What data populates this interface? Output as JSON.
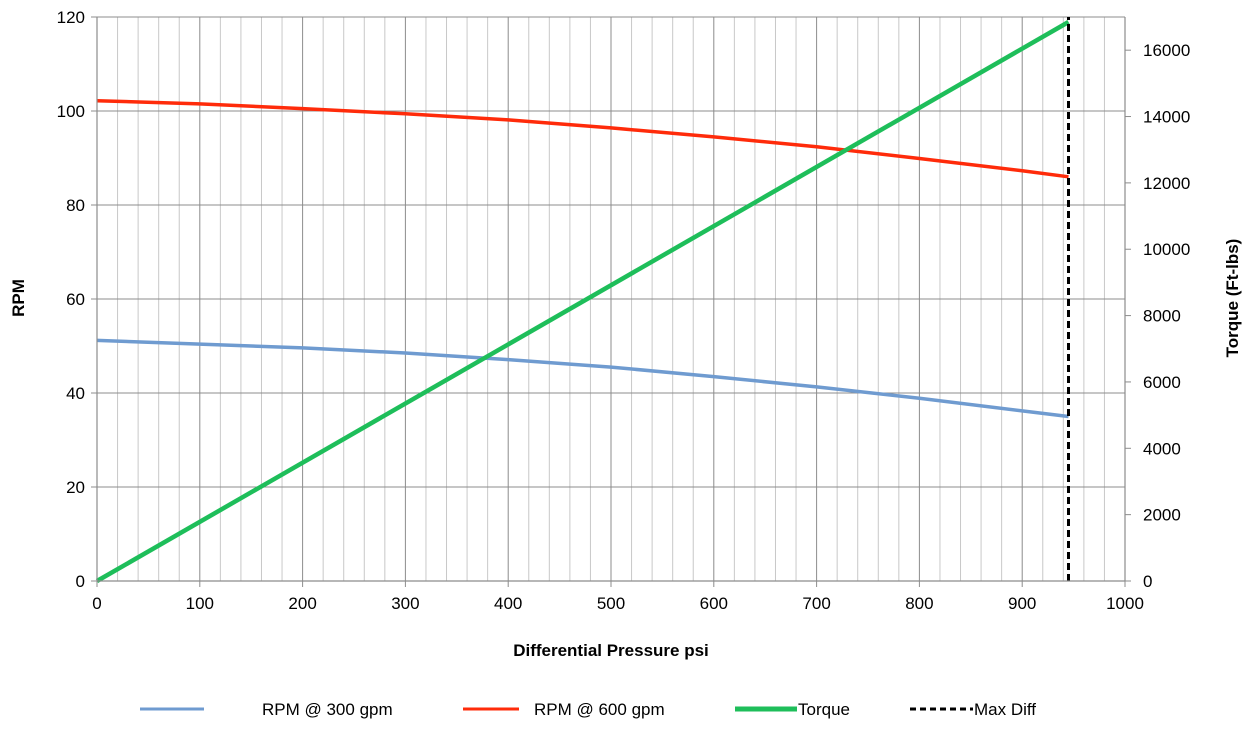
{
  "chart_data": {
    "type": "line",
    "title": "",
    "xlabel": "Differential Pressure psi",
    "ylabel": "RPM",
    "y2label": "Torque (Ft-lbs)",
    "xlim": [
      0,
      1000
    ],
    "ylim": [
      0,
      120
    ],
    "y2lim": [
      0,
      17000
    ],
    "x_ticks": [
      "0",
      "100",
      "200",
      "300",
      "400",
      "500",
      "600",
      "700",
      "800",
      "900",
      "1000"
    ],
    "y_ticks": [
      "0",
      "20",
      "40",
      "60",
      "80",
      "100",
      "120"
    ],
    "y2_ticks": [
      "0",
      "2000",
      "4000",
      "6000",
      "8000",
      "10000",
      "12000",
      "14000",
      "16000"
    ],
    "grid": true,
    "legend_position": "bottom",
    "series": [
      {
        "name": "RPM @ 300 gpm",
        "axis": "left",
        "color": "#6f9bd0",
        "x": [
          0,
          100,
          200,
          300,
          400,
          500,
          600,
          700,
          800,
          900,
          945
        ],
        "values": [
          51.2,
          50.4,
          49.6,
          48.5,
          47.1,
          45.5,
          43.5,
          41.3,
          38.9,
          36.2,
          35.0
        ]
      },
      {
        "name": "RPM @ 600 gpm",
        "axis": "left",
        "color": "#ff2b0a",
        "x": [
          0,
          100,
          200,
          300,
          400,
          500,
          600,
          700,
          800,
          900,
          945
        ],
        "values": [
          102.2,
          101.5,
          100.5,
          99.4,
          98.1,
          96.4,
          94.5,
          92.4,
          89.9,
          87.3,
          86.0
        ]
      },
      {
        "name": "Torque",
        "axis": "right",
        "color": "#1ebe5a",
        "x": [
          0,
          945
        ],
        "values": [
          0,
          16850
        ]
      },
      {
        "name": "Max Diff",
        "axis": "left",
        "color": "#000000",
        "dashed": true,
        "x": [
          945,
          945
        ],
        "values": [
          0,
          120
        ]
      }
    ]
  }
}
